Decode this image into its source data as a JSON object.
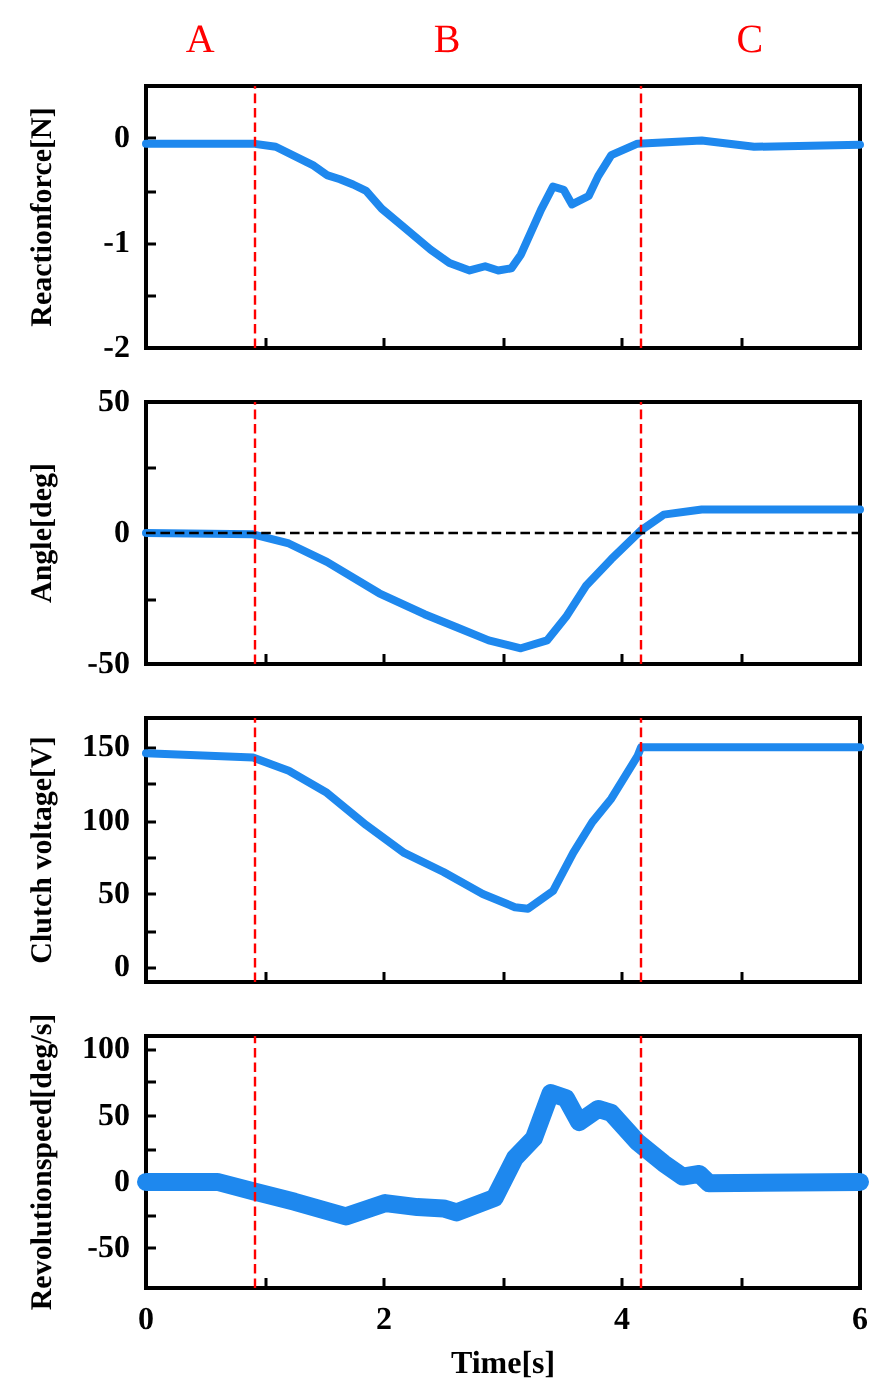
{
  "chart_data": [
    {
      "type": "line",
      "ylabel": "Reactionforce[N]",
      "annotations": [
        "A",
        "B",
        "C"
      ],
      "tick_labels": "y",
      "xlim": [
        0,
        6
      ],
      "xticks": [
        0,
        {
          "value": 1,
          "label": null
        },
        2,
        {
          "value": 3,
          "label": null
        },
        4,
        {
          "value": 5,
          "label": null
        },
        6
      ],
      "ylim": [
        -2,
        0.5
      ],
      "yticks": [
        -2,
        {
          "value": -1.5,
          "label": null
        },
        -1,
        {
          "value": -0.5,
          "label": null
        },
        0
      ],
      "x": [
        0,
        0.9,
        1.09,
        1.41,
        1.52,
        1.63,
        1.74,
        1.85,
        1.98,
        2.17,
        2.39,
        2.55,
        2.72,
        2.85,
        2.96,
        3.07,
        3.15,
        3.32,
        3.42,
        3.51,
        3.58,
        3.72,
        3.8,
        3.91,
        4.13,
        4.67,
        5.11,
        6
      ],
      "series": [
        {
          "color": "#1e88ee",
          "values": [
            -0.05,
            -0.05,
            -0.08,
            -0.26,
            -0.35,
            -0.39,
            -0.44,
            -0.5,
            -0.67,
            -0.85,
            -1.06,
            -1.19,
            -1.26,
            -1.22,
            -1.26,
            -1.24,
            -1.11,
            -0.68,
            -0.46,
            -0.49,
            -0.63,
            -0.55,
            -0.36,
            -0.16,
            -0.05,
            -0.02,
            -0.08,
            -0.06
          ]
        }
      ],
      "ref_lines": [
        {
          "axis": "x",
          "value": 0.91,
          "color": "#ff0000",
          "line_style": "dashed"
        },
        {
          "axis": "x",
          "value": 4.15,
          "color": "#ff0000",
          "line_style": "dashed"
        }
      ]
    },
    {
      "type": "line",
      "ylabel": "Angle[deg]",
      "tick_labels": "y",
      "xlim": [
        0,
        6
      ],
      "xticks": [
        0,
        {
          "value": 1,
          "label": null
        },
        2,
        {
          "value": 3,
          "label": null
        },
        4,
        {
          "value": 5,
          "label": null
        },
        6
      ],
      "ylim": [
        -50,
        50
      ],
      "yticks": [
        -50,
        {
          "value": -25,
          "label": null
        },
        0,
        {
          "value": 25,
          "label": null
        },
        50
      ],
      "x": [
        0,
        0.9,
        1.2,
        1.52,
        1.96,
        2.34,
        2.61,
        2.88,
        3.15,
        3.37,
        3.53,
        3.7,
        3.91,
        4.16,
        4.35,
        4.67,
        6
      ],
      "series": [
        {
          "color": "#1e88ee",
          "values": [
            0,
            -0.5,
            -4,
            -11,
            -23,
            -31,
            -36,
            -41,
            -44,
            -41,
            -32,
            -20,
            -10,
            1,
            7,
            9,
            9
          ]
        }
      ],
      "ref_lines": [
        {
          "axis": "x",
          "value": 0.91,
          "color": "#ff0000",
          "line_style": "dashed"
        },
        {
          "axis": "x",
          "value": 4.15,
          "color": "#ff0000",
          "line_style": "dashed"
        },
        {
          "axis": "y",
          "value": 0,
          "color": "#000000",
          "line_style": "dashed"
        }
      ]
    },
    {
      "type": "line",
      "ylabel": "Clutch voltage[V]",
      "tick_labels": "y",
      "xlim": [
        0,
        6
      ],
      "xticks": [
        0,
        {
          "value": 1,
          "label": null
        },
        2,
        {
          "value": 3,
          "label": null
        },
        4,
        {
          "value": 5,
          "label": null
        },
        6
      ],
      "ylim": [
        -10,
        170
      ],
      "yticks": [
        0,
        {
          "value": 25,
          "label": null
        },
        50,
        {
          "value": 75,
          "label": null
        },
        100,
        {
          "value": 125,
          "label": null
        },
        150
      ],
      "x": [
        0,
        0.9,
        1.2,
        1.52,
        1.85,
        2.17,
        2.5,
        2.83,
        3.1,
        3.21,
        3.42,
        3.59,
        3.75,
        3.91,
        4.13,
        4.16,
        6
      ],
      "series": [
        {
          "color": "#1e88ee",
          "values": [
            146,
            143,
            134,
            119,
            97,
            78,
            65,
            50,
            41,
            40,
            52,
            78,
            99,
            115,
            144,
            150,
            150
          ]
        }
      ],
      "ref_lines": [
        {
          "axis": "x",
          "value": 0.91,
          "color": "#ff0000",
          "line_style": "dashed"
        },
        {
          "axis": "x",
          "value": 4.15,
          "color": "#ff0000",
          "line_style": "dashed"
        }
      ]
    },
    {
      "type": "line",
      "ylabel": "Revolutionspeed[deg/s]",
      "xlabel": "Time[s]",
      "xlim": [
        0,
        6
      ],
      "xticks": [
        0,
        {
          "value": 1,
          "label": null
        },
        2,
        {
          "value": 3,
          "label": null
        },
        4,
        {
          "value": 5,
          "label": null
        },
        6
      ],
      "ylim": [
        -80,
        110
      ],
      "yticks": [
        -50,
        {
          "value": -25,
          "label": null
        },
        0,
        {
          "value": 25,
          "label": null
        },
        50,
        {
          "value": 75,
          "label": null
        },
        100
      ],
      "x": [
        0,
        0.6,
        0.9,
        1.25,
        1.68,
        2.01,
        2.28,
        2.5,
        2.61,
        2.93,
        3.1,
        3.26,
        3.4,
        3.53,
        3.64,
        3.8,
        3.91,
        4.13,
        4.35,
        4.51,
        4.65,
        4.73,
        6
      ],
      "series": [
        {
          "color": "#1e88ee",
          "values": [
            0,
            0,
            -7,
            -15,
            -26,
            -16,
            -19,
            -20,
            -23,
            -12,
            18,
            33,
            67,
            63,
            45,
            55,
            52,
            30,
            14,
            4,
            6,
            -1,
            0
          ]
        }
      ],
      "ref_lines": [
        {
          "axis": "x",
          "value": 0.91,
          "color": "#ff0000",
          "line_style": "dashed"
        },
        {
          "axis": "x",
          "value": 4.15,
          "color": "#ff0000",
          "line_style": "dashed"
        }
      ]
    }
  ]
}
